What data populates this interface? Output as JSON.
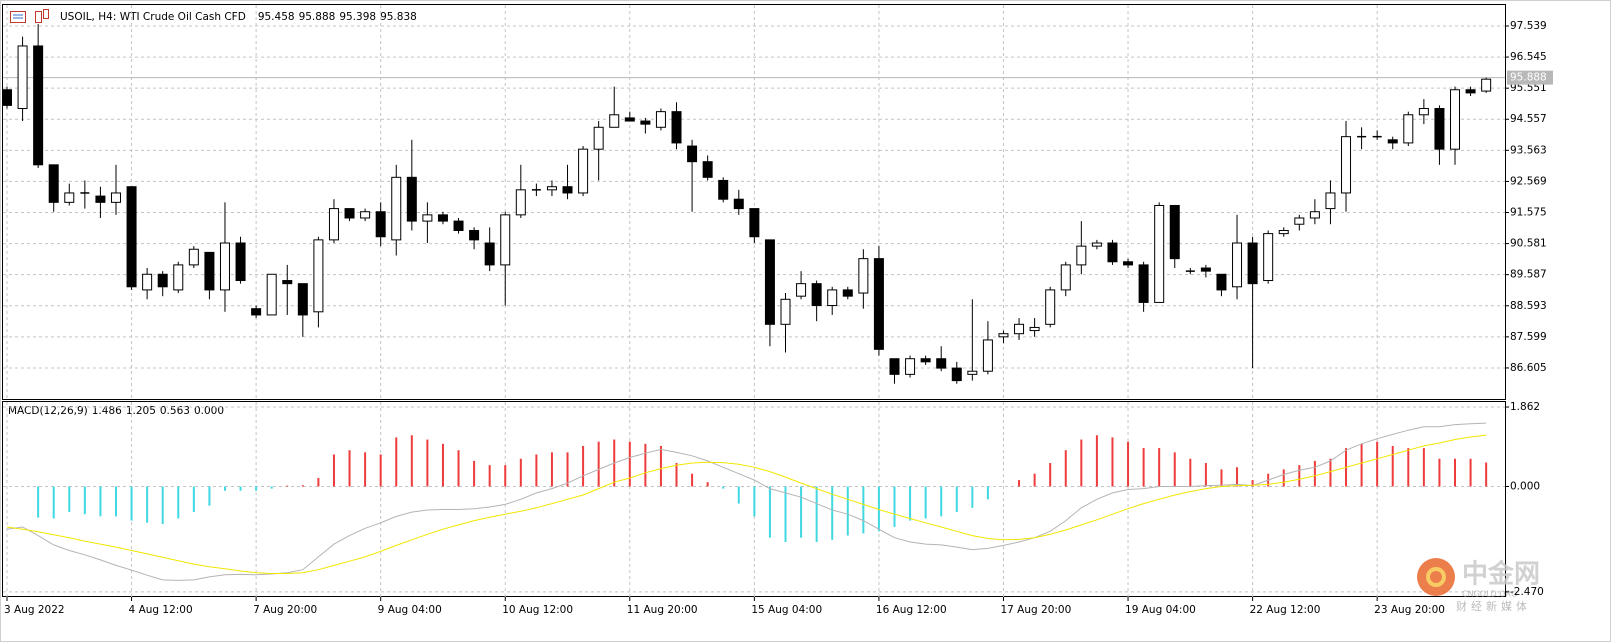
{
  "chart_data": [
    {
      "type": "candlestick",
      "title": "USOIL, H4:  WTI Crude Oil Cash CFD",
      "categories": [
        "3 Aug 2022",
        null,
        null,
        null,
        null,
        null,
        null,
        null,
        "4 Aug 12:00",
        null,
        null,
        null,
        null,
        null,
        null,
        null,
        "7 Aug 20:00",
        null,
        null,
        null,
        null,
        null,
        null,
        null,
        "9 Aug 04:00",
        null,
        null,
        null,
        null,
        null,
        null,
        null,
        "10 Aug 12:00",
        null,
        null,
        null,
        null,
        null,
        null,
        null,
        "11 Aug 20:00",
        null,
        null,
        null,
        null,
        null,
        null,
        null,
        "15 Aug 04:00",
        null,
        null,
        null,
        null,
        null,
        null,
        null,
        "16 Aug 12:00",
        null,
        null,
        null,
        null,
        null,
        null,
        null,
        "17 Aug 20:00",
        null,
        null,
        null,
        null,
        null,
        null,
        null,
        "19 Aug 04:00",
        null,
        null,
        null,
        null,
        null,
        null,
        null,
        "22 Aug 12:00",
        null,
        null,
        null,
        null,
        null,
        null,
        null,
        "23 Aug 20:00",
        null,
        null,
        null,
        null,
        null,
        null,
        null
      ],
      "open": [
        95.5,
        94.9,
        96.9,
        93.1,
        91.9,
        92.2,
        92.1,
        91.9,
        92.4,
        89.1,
        89.6,
        89.1,
        89.9,
        90.3,
        89.1,
        90.6,
        88.5,
        88.3,
        89.4,
        89.3,
        88.4,
        90.7,
        91.7,
        91.4,
        91.6,
        90.7,
        92.7,
        91.3,
        91.5,
        91.3,
        91.0,
        90.6,
        89.9,
        91.5,
        92.3,
        92.3,
        92.4,
        92.2,
        93.6,
        94.3,
        94.6,
        94.5,
        94.3,
        94.8,
        93.7,
        93.2,
        92.6,
        92.0,
        91.7,
        90.7,
        88.0,
        88.9,
        89.3,
        88.6,
        89.1,
        89.0,
        90.1,
        86.9,
        86.4,
        86.9,
        86.9,
        86.6,
        86.4,
        86.5,
        87.6,
        87.7,
        87.8,
        88.0,
        89.1,
        89.9,
        90.5,
        90.6,
        90.0,
        89.9,
        88.7,
        91.8,
        89.7,
        89.8,
        89.6,
        89.2,
        90.6,
        89.4,
        90.9,
        91.2,
        91.4,
        91.7,
        92.2,
        94.0,
        94.0,
        93.9,
        93.8,
        94.7,
        94.9,
        93.6,
        95.5,
        95.458
      ],
      "high": [
        95.6,
        97.2,
        97.6,
        93.1,
        92.5,
        92.6,
        92.4,
        93.1,
        92.4,
        89.8,
        89.7,
        90.0,
        90.5,
        90.3,
        91.9,
        90.8,
        88.6,
        89.6,
        89.9,
        89.3,
        90.8,
        92.0,
        91.7,
        91.7,
        91.9,
        93.1,
        93.9,
        91.9,
        91.6,
        91.4,
        91.1,
        91.1,
        91.6,
        93.1,
        92.5,
        92.6,
        93.1,
        93.7,
        94.5,
        95.6,
        94.8,
        94.6,
        94.9,
        95.1,
        93.9,
        93.4,
        92.7,
        92.3,
        91.7,
        90.7,
        89.0,
        89.7,
        89.4,
        89.2,
        89.2,
        90.4,
        90.5,
        86.9,
        87.0,
        87.0,
        87.3,
        86.8,
        88.8,
        88.1,
        87.8,
        88.2,
        88.2,
        89.2,
        90.0,
        91.3,
        90.7,
        90.7,
        90.1,
        90.0,
        91.9,
        91.8,
        89.8,
        89.9,
        89.6,
        91.5,
        90.8,
        91.0,
        91.1,
        91.5,
        92.0,
        92.6,
        94.5,
        94.3,
        94.2,
        94.0,
        94.8,
        95.2,
        95.0,
        95.6,
        95.6,
        95.888
      ],
      "low": [
        94.9,
        94.5,
        93.0,
        91.6,
        91.8,
        91.7,
        91.4,
        91.5,
        89.1,
        88.8,
        88.9,
        89.0,
        89.8,
        88.8,
        88.4,
        89.3,
        88.2,
        88.3,
        88.3,
        87.6,
        87.9,
        90.6,
        91.3,
        91.3,
        90.5,
        90.2,
        91.0,
        90.6,
        91.2,
        90.9,
        90.4,
        89.7,
        88.6,
        91.4,
        92.1,
        92.1,
        92.0,
        92.1,
        92.6,
        94.3,
        94.5,
        94.1,
        94.2,
        93.6,
        91.6,
        92.6,
        91.9,
        91.5,
        90.6,
        87.3,
        87.1,
        88.8,
        88.1,
        88.3,
        88.8,
        88.5,
        87.0,
        86.1,
        86.3,
        86.7,
        86.5,
        86.1,
        86.2,
        86.4,
        87.4,
        87.5,
        87.6,
        87.9,
        88.9,
        89.6,
        90.4,
        89.9,
        89.8,
        88.4,
        88.7,
        89.8,
        89.6,
        89.5,
        88.9,
        88.8,
        86.6,
        89.3,
        90.8,
        91.0,
        91.2,
        91.2,
        91.6,
        93.6,
        93.9,
        93.6,
        93.7,
        94.4,
        93.1,
        93.1,
        95.3,
        95.398
      ],
      "close": [
        95.0,
        96.9,
        93.1,
        91.9,
        92.2,
        92.2,
        91.9,
        92.2,
        89.2,
        89.6,
        89.2,
        89.9,
        90.4,
        89.1,
        90.6,
        89.4,
        88.3,
        89.6,
        89.3,
        88.3,
        90.7,
        91.7,
        91.4,
        91.6,
        90.8,
        92.7,
        91.3,
        91.5,
        91.3,
        91.0,
        90.7,
        89.9,
        91.5,
        92.3,
        92.3,
        92.4,
        92.2,
        93.6,
        94.3,
        94.7,
        94.5,
        94.4,
        94.8,
        93.8,
        93.2,
        92.7,
        92.0,
        91.7,
        90.8,
        88.0,
        88.8,
        89.3,
        88.6,
        89.1,
        88.9,
        90.1,
        87.2,
        86.4,
        86.9,
        86.8,
        86.6,
        86.2,
        86.5,
        87.5,
        87.7,
        88.0,
        87.9,
        89.1,
        89.9,
        90.5,
        90.6,
        90.0,
        89.9,
        88.7,
        91.8,
        90.1,
        89.7,
        89.7,
        89.1,
        90.6,
        89.3,
        90.9,
        91.0,
        91.4,
        91.6,
        92.2,
        94.0,
        94.0,
        94.0,
        93.8,
        94.7,
        94.9,
        93.6,
        95.5,
        95.4,
        95.838
      ],
      "up_color": "#ffffff",
      "down_color": "#000000",
      "price_line": 95.888,
      "ylim": [
        85.58,
        98.21
      ],
      "yticks": [
        97.539,
        96.545,
        95.551,
        94.557,
        93.563,
        92.569,
        91.575,
        90.581,
        89.587,
        88.593,
        87.599,
        86.605
      ],
      "grid": true
    },
    {
      "type": "macd",
      "title": "MACD(12,26,9)",
      "histogram": [
        null,
        null,
        -0.73,
        -0.75,
        -0.6,
        -0.65,
        -0.7,
        -0.7,
        -0.8,
        -0.85,
        -0.88,
        -0.75,
        -0.6,
        -0.45,
        -0.1,
        -0.1,
        -0.1,
        -0.05,
        0.02,
        0.03,
        0.2,
        0.75,
        0.85,
        0.8,
        0.75,
        1.15,
        1.2,
        1.1,
        1.0,
        0.85,
        0.6,
        0.5,
        0.5,
        0.65,
        0.75,
        0.8,
        0.8,
        0.95,
        1.05,
        1.1,
        1.05,
        1.0,
        0.95,
        0.55,
        0.3,
        0.1,
        -0.05,
        -0.4,
        -0.7,
        -1.2,
        -1.3,
        -1.2,
        -1.3,
        -1.25,
        -1.15,
        -1.1,
        -1.05,
        -0.95,
        -0.8,
        -0.75,
        -0.7,
        -0.6,
        -0.5,
        -0.3,
        0,
        0.15,
        0.3,
        0.55,
        0.85,
        1.1,
        1.2,
        1.15,
        1.05,
        0.9,
        0.9,
        0.8,
        0.65,
        0.55,
        0.4,
        0.45,
        0.15,
        0.3,
        0.4,
        0.5,
        0.6,
        0.65,
        0.9,
        1.0,
        1.05,
        0.95,
        0.9,
        0.9,
        0.65,
        0.65,
        0.65,
        0.563
      ],
      "main": [
        -1.0,
        -0.95,
        -1.15,
        -1.37,
        -1.5,
        -1.6,
        -1.72,
        -1.85,
        -1.96,
        -2.08,
        -2.19,
        -2.2,
        -2.19,
        -2.12,
        -2.07,
        -2.06,
        -2.07,
        -2.05,
        -2.02,
        -1.95,
        -1.65,
        -1.35,
        -1.15,
        -0.98,
        -0.85,
        -0.7,
        -0.6,
        -0.55,
        -0.54,
        -0.54,
        -0.52,
        -0.48,
        -0.42,
        -0.3,
        -0.15,
        -0.05,
        0.08,
        0.25,
        0.4,
        0.55,
        0.68,
        0.78,
        0.87,
        0.8,
        0.72,
        0.6,
        0.45,
        0.3,
        0.15,
        -0.05,
        -0.15,
        -0.25,
        -0.4,
        -0.55,
        -0.65,
        -0.8,
        -1.0,
        -1.2,
        -1.3,
        -1.35,
        -1.37,
        -1.42,
        -1.48,
        -1.45,
        -1.38,
        -1.3,
        -1.2,
        -1.05,
        -0.8,
        -0.5,
        -0.3,
        -0.15,
        -0.07,
        -0.05,
        0.0,
        0.0,
        0.0,
        0.02,
        0.03,
        0.05,
        0.02,
        0.15,
        0.28,
        0.38,
        0.45,
        0.6,
        0.85,
        1.0,
        1.12,
        1.22,
        1.32,
        1.4,
        1.4,
        1.45,
        1.47,
        1.486
      ],
      "signal": [
        -0.95,
        -1.0,
        -1.06,
        -1.13,
        -1.2,
        -1.28,
        -1.35,
        -1.42,
        -1.5,
        -1.58,
        -1.66,
        -1.74,
        -1.82,
        -1.88,
        -1.93,
        -1.98,
        -2.02,
        -2.04,
        -2.04,
        -2.02,
        -1.95,
        -1.85,
        -1.75,
        -1.65,
        -1.52,
        -1.38,
        -1.25,
        -1.12,
        -1.0,
        -0.9,
        -0.8,
        -0.72,
        -0.65,
        -0.58,
        -0.5,
        -0.4,
        -0.3,
        -0.2,
        -0.05,
        0.1,
        0.2,
        0.32,
        0.42,
        0.5,
        0.55,
        0.57,
        0.56,
        0.52,
        0.45,
        0.35,
        0.22,
        0.08,
        -0.05,
        -0.18,
        -0.3,
        -0.42,
        -0.54,
        -0.65,
        -0.75,
        -0.85,
        -0.95,
        -1.05,
        -1.15,
        -1.22,
        -1.25,
        -1.24,
        -1.2,
        -1.12,
        -1.02,
        -0.9,
        -0.78,
        -0.65,
        -0.52,
        -0.4,
        -0.3,
        -0.2,
        -0.12,
        -0.05,
        0.0,
        0.02,
        0.03,
        0.05,
        0.1,
        0.17,
        0.25,
        0.35,
        0.45,
        0.55,
        0.65,
        0.75,
        0.85,
        0.95,
        1.02,
        1.1,
        1.16,
        1.205
      ],
      "up_color": "#ee3b3b",
      "down_color": "#40d8e2",
      "main_color": "#b4b4b4",
      "signal_color": "#f2e600",
      "ylim": [
        -2.59,
        1.98
      ],
      "yticks": [
        {
          "value": -2.47,
          "label": "-2.470"
        },
        {
          "value": 0,
          "label": "0.000"
        },
        1.862
      ],
      "grid": true
    }
  ],
  "watermark": {
    "name": "中金网",
    "domain": "CNGOLD.ORG",
    "slogan": "财经新媒体"
  }
}
